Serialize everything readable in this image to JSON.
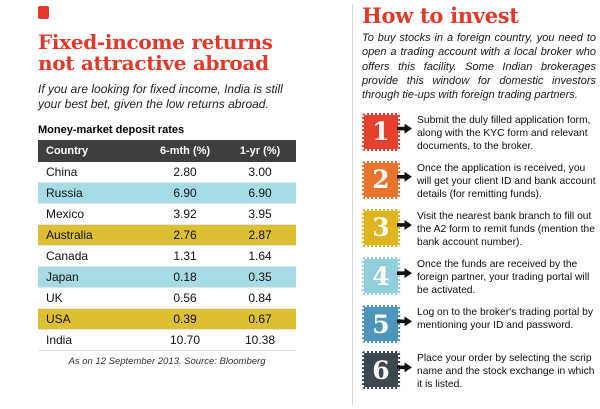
{
  "colors": {
    "accent_red": "#e23a2a",
    "table_header_bg": "#3f3f3f",
    "row_white": "#ffffff",
    "row_teal": "#a6dbe5",
    "row_yellow": "#dcbf33",
    "arrow_black": "#111111"
  },
  "left": {
    "title": "Fixed-income returns not attractive abroad",
    "subtitle": "If you are looking for fixed income, India is still your best bet, given the low returns abroad.",
    "table_label": "Money-market deposit rates",
    "table": {
      "headers": [
        "Country",
        "6-mth (%)",
        "1-yr (%)"
      ],
      "rows": [
        {
          "country": "China",
          "six_mth": "2.80",
          "one_yr": "3.00",
          "bg": "#ffffff"
        },
        {
          "country": "Russia",
          "six_mth": "6.90",
          "one_yr": "6.90",
          "bg": "#a6dbe5"
        },
        {
          "country": "Mexico",
          "six_mth": "3.92",
          "one_yr": "3.95",
          "bg": "#ffffff"
        },
        {
          "country": "Australia",
          "six_mth": "2.76",
          "one_yr": "2.87",
          "bg": "#dcbf33"
        },
        {
          "country": "Canada",
          "six_mth": "1.31",
          "one_yr": "1.64",
          "bg": "#ffffff"
        },
        {
          "country": "Japan",
          "six_mth": "0.18",
          "one_yr": "0.35",
          "bg": "#a6dbe5"
        },
        {
          "country": "UK",
          "six_mth": "0.56",
          "one_yr": "0.84",
          "bg": "#ffffff"
        },
        {
          "country": "USA",
          "six_mth": "0.39",
          "one_yr": "0.67",
          "bg": "#dcbf33"
        },
        {
          "country": "India",
          "six_mth": "10.70",
          "one_yr": "10.38",
          "bg": "#ffffff"
        }
      ]
    },
    "footnote": "As on 12 September 2013. Source: Bloomberg"
  },
  "right": {
    "title": "How to invest",
    "intro": "To buy stocks in a foreign country, you need to open a trading account with a local broker who offers this facility. Some Indian brokerages provide this window for domestic investors through tie-ups with foreign trading partners.",
    "steps": [
      {
        "num": "1",
        "color": "#e5402e",
        "text": "Submit the duly filled application form, along with the KYC form and relevant documents, to the broker."
      },
      {
        "num": "2",
        "color": "#e8732c",
        "text": "Once the application is received, you will get your client ID and bank account details (for remitting funds)."
      },
      {
        "num": "3",
        "color": "#dfb51f",
        "text": "Visit the nearest bank branch to fill out the A2 form to remit funds (mention the bank account number)."
      },
      {
        "num": "4",
        "color": "#93cedd",
        "text": "Once the funds are received by the foreign partner, your trading portal will be activated."
      },
      {
        "num": "5",
        "color": "#4e95bc",
        "text": "Log on to the broker's trading portal by mentioning your ID and password."
      },
      {
        "num": "6",
        "color": "#3d4750",
        "text": "Place your order by selecting the scrip name and the stock exchange in which it is listed."
      }
    ]
  }
}
